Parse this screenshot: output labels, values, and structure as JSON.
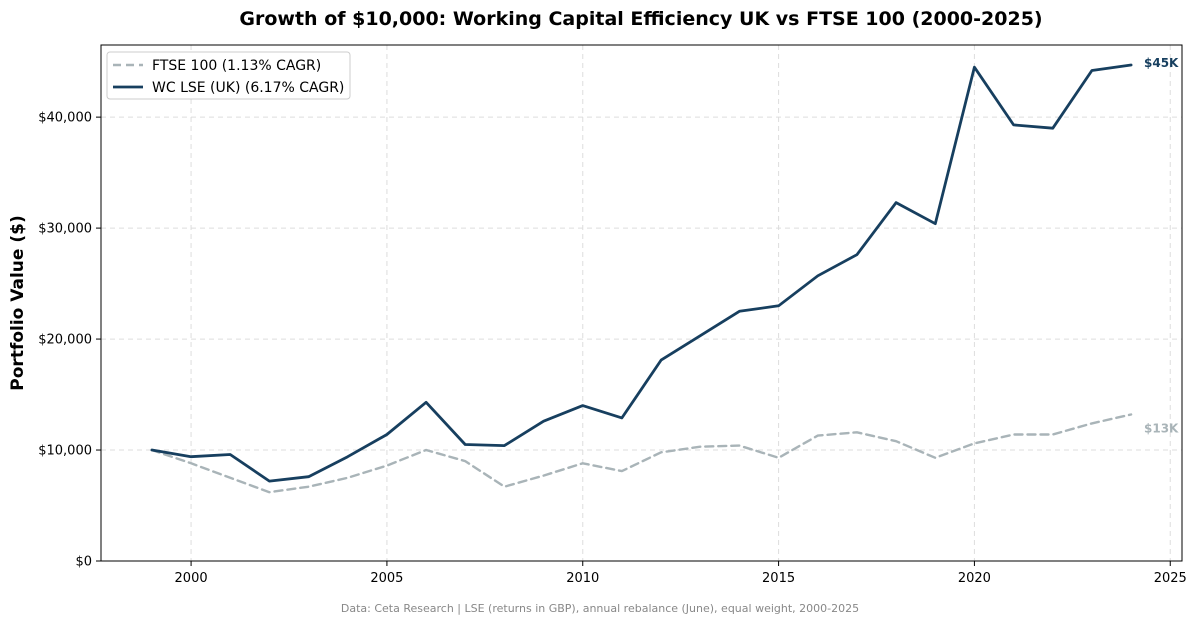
{
  "chart_data": {
    "type": "line",
    "title": "Growth of $10,000: Working Capital Efficiency UK vs FTSE 100 (2000-2025)",
    "xlabel": "",
    "ylabel": "Portfolio Value ($)",
    "xlim": [
      1997.7,
      2025.3
    ],
    "ylim": [
      0,
      46500
    ],
    "x_ticks": [
      2000,
      2005,
      2010,
      2015,
      2020,
      2025
    ],
    "y_ticks": [
      0,
      10000,
      20000,
      30000,
      40000
    ],
    "y_tick_labels": [
      "$0",
      "$10,000",
      "$20,000",
      "$30,000",
      "$40,000"
    ],
    "grid": true,
    "legend_position": "top-left",
    "x": [
      1999,
      2000,
      2001,
      2002,
      2003,
      2004,
      2005,
      2006,
      2007,
      2008,
      2009,
      2010,
      2011,
      2012,
      2013,
      2014,
      2015,
      2016,
      2017,
      2018,
      2019,
      2020,
      2021,
      2022,
      2023,
      2024
    ],
    "series": [
      {
        "name": "FTSE 100 (1.13% CAGR)",
        "color": "#a9b4b8",
        "style": "dashed",
        "end_label": "$13K",
        "values": [
          10000,
          8800,
          7500,
          6200,
          6700,
          7500,
          8600,
          10000,
          9000,
          6700,
          7700,
          8800,
          8100,
          9800,
          10300,
          10400,
          9300,
          11300,
          11600,
          10800,
          9300,
          10600,
          11400,
          11400,
          12400,
          13200
        ]
      },
      {
        "name": "WC LSE (UK) (6.17% CAGR)",
        "color": "#173f5f",
        "style": "solid",
        "end_label": "$45K",
        "values": [
          10000,
          9400,
          9600,
          7200,
          7600,
          9400,
          11400,
          14300,
          10500,
          10400,
          12600,
          14000,
          12900,
          18100,
          20300,
          22500,
          23000,
          25700,
          27600,
          32300,
          30400,
          44500,
          39300,
          39000,
          44200,
          44700
        ]
      }
    ]
  },
  "footnote": "Data: Ceta Research | LSE (returns in GBP), annual rebalance (June), equal weight, 2000-2025"
}
